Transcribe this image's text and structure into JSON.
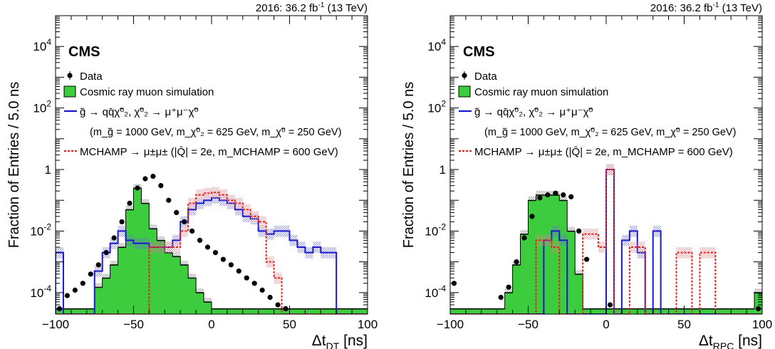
{
  "chart_data": [
    {
      "type": "histogram",
      "panel": "left",
      "lumi_label": "2016: 36.2 fb",
      "lumi_sup": "-1",
      "lumi_energy": " (13 TeV)",
      "experiment": "CMS",
      "ylabel": "Fraction of Entries / 5.0 ns",
      "xlabel_main": "Δt",
      "xlabel_sub": "DT",
      "xlabel_unit": " [ns]",
      "xlim": [
        -100,
        100
      ],
      "ylog": true,
      "ylim": [
        2e-05,
        100000
      ],
      "xticks": [
        -100,
        -50,
        0,
        50,
        100
      ],
      "yticks_labels": [
        {
          "v": 0.0001,
          "base": "10",
          "exp": "-4"
        },
        {
          "v": 0.01,
          "base": "10",
          "exp": "-2"
        },
        {
          "v": 1,
          "base": "1",
          "exp": ""
        },
        {
          "v": 100,
          "base": "10",
          "exp": "2"
        },
        {
          "v": 10000,
          "base": "10",
          "exp": "4"
        }
      ],
      "bin_edges_start": -100,
      "bin_width": 5,
      "series": [
        {
          "name": "Cosmic ray muon simulation",
          "kind": "filled",
          "color": "#3dcc3d",
          "values": [
            3e-05,
            3e-05,
            3e-05,
            3e-05,
            3e-05,
            0.00015,
            0.0003,
            0.0008,
            0.003,
            0.05,
            0.25,
            0.08,
            0.012,
            0.005,
            0.002,
            0.0015,
            0.0008,
            0.0003,
            0.0001,
            5e-05,
            3e-05,
            3e-05,
            3e-05,
            3e-05,
            3e-05,
            3e-05,
            3e-05,
            3e-05,
            3e-05,
            3e-05,
            3e-05,
            3e-05,
            3e-05,
            3e-05,
            3e-05,
            3e-05,
            3e-05,
            3e-05,
            3e-05,
            3e-05
          ]
        },
        {
          "name": "",
          "kind": "step",
          "color": "#1a1acc",
          "legend_ref": "signal_gluino",
          "values": [
            0.002,
            2e-05,
            2e-05,
            2e-05,
            2e-05,
            0.0005,
            0.002,
            0.004,
            0.01,
            0.005,
            0.004,
            0.004,
            0.003,
            0.003,
            0.003,
            0.005,
            0.02,
            0.05,
            0.08,
            0.1,
            0.12,
            0.1,
            0.08,
            0.05,
            0.03,
            0.025,
            0.01,
            0.008,
            0.01,
            0.01,
            0.005,
            0.003,
            0.002,
            0.003,
            0.002,
            0.002,
            2e-05,
            2e-05,
            2e-05,
            2e-05
          ]
        },
        {
          "name": "",
          "kind": "dashed",
          "color": "#e52020",
          "legend_ref": "signal_mchamp",
          "values": [
            2e-05,
            2e-05,
            2e-05,
            2e-05,
            2e-05,
            2e-05,
            2e-05,
            2e-05,
            2e-05,
            2e-05,
            2e-05,
            2e-05,
            0.003,
            0.003,
            0.003,
            0.003,
            0.01,
            0.08,
            0.15,
            0.17,
            0.18,
            0.15,
            0.1,
            0.08,
            0.05,
            0.03,
            0.02,
            0.001,
            0.0003,
            2e-05,
            2e-05,
            2e-05,
            2e-05,
            2e-05,
            2e-05,
            2e-05,
            2e-05,
            2e-05,
            2e-05,
            2e-05
          ]
        },
        {
          "name": "Data",
          "kind": "points",
          "color": "#000000",
          "x": [
            -97.5,
            -92.5,
            -87.5,
            -82.5,
            -77.5,
            -72.5,
            -67.5,
            -62.5,
            -57.5,
            -52.5,
            -47.5,
            -42.5,
            -37.5,
            -32.5,
            -27.5,
            -22.5,
            -17.5,
            -12.5,
            -7.5,
            -2.5,
            2.5,
            7.5,
            12.5,
            17.5,
            22.5,
            27.5,
            32.5,
            37.5,
            42.5,
            47.5
          ],
          "values": [
            3e-05,
            8e-05,
            0.00012,
            0.0002,
            0.0004,
            0.0008,
            0.002,
            0.006,
            0.02,
            0.08,
            0.25,
            0.5,
            0.6,
            0.3,
            0.1,
            0.04,
            0.02,
            0.01,
            0.005,
            0.003,
            0.002,
            0.0012,
            0.0008,
            0.0005,
            0.0003,
            0.0002,
            0.00012,
            7e-05,
            4e-05,
            3e-05
          ]
        }
      ]
    },
    {
      "type": "histogram",
      "panel": "right",
      "lumi_label": "2016: 36.2 fb",
      "lumi_sup": "-1",
      "lumi_energy": " (13 TeV)",
      "experiment": "CMS",
      "ylabel": "Fraction of Entries / 5.0 ns",
      "xlabel_main": "Δt",
      "xlabel_sub": "RPC",
      "xlabel_unit": " [ns]",
      "xlim": [
        -100,
        100
      ],
      "ylog": true,
      "ylim": [
        2e-05,
        100000
      ],
      "xticks": [
        -100,
        -50,
        0,
        50,
        100
      ],
      "yticks_labels": [
        {
          "v": 0.0001,
          "base": "10",
          "exp": "-4"
        },
        {
          "v": 0.01,
          "base": "10",
          "exp": "-2"
        },
        {
          "v": 1,
          "base": "1",
          "exp": ""
        },
        {
          "v": 100,
          "base": "10",
          "exp": "2"
        },
        {
          "v": 10000,
          "base": "10",
          "exp": "4"
        }
      ],
      "bin_edges_start": -100,
      "bin_width": 5,
      "series": [
        {
          "name": "Cosmic ray muon simulation",
          "kind": "filled",
          "color": "#3dcc3d",
          "values": [
            3e-05,
            3e-05,
            3e-05,
            3e-05,
            3e-05,
            3e-05,
            3e-05,
            0.0001,
            0.0008,
            0.008,
            0.1,
            0.15,
            0.15,
            0.15,
            0.1,
            0.01,
            0.0004,
            3e-05,
            3e-05,
            3e-05,
            3e-05,
            3e-05,
            3e-05,
            3e-05,
            3e-05,
            3e-05,
            3e-05,
            3e-05,
            3e-05,
            3e-05,
            3e-05,
            3e-05,
            3e-05,
            3e-05,
            3e-05,
            3e-05,
            3e-05,
            3e-05,
            3e-05,
            0.0001
          ]
        },
        {
          "name": "",
          "kind": "step",
          "color": "#1a1acc",
          "legend_ref": "signal_gluino",
          "values": [
            2e-05,
            2e-05,
            2e-05,
            2e-05,
            2e-05,
            2e-05,
            2e-05,
            2e-05,
            2e-05,
            2e-05,
            2e-05,
            2e-05,
            0.005,
            0.01,
            0.005,
            2e-05,
            2e-05,
            2e-05,
            2e-05,
            2e-05,
            1.0,
            2e-05,
            0.005,
            0.01,
            0.002,
            2e-05,
            0.01,
            2e-05,
            2e-05,
            2e-05,
            2e-05,
            2e-05,
            2e-05,
            2e-05,
            2e-05,
            2e-05,
            2e-05,
            2e-05,
            2e-05,
            2e-05
          ]
        },
        {
          "name": "",
          "kind": "dashed",
          "color": "#e52020",
          "legend_ref": "signal_mchamp",
          "values": [
            2e-05,
            2e-05,
            2e-05,
            2e-05,
            2e-05,
            2e-05,
            2e-05,
            2e-05,
            2e-05,
            2e-05,
            2e-05,
            0.005,
            0.005,
            0.003,
            2e-05,
            2e-05,
            2e-05,
            0.008,
            0.008,
            0.003,
            1.0,
            2e-05,
            2e-05,
            0.003,
            0.003,
            2e-05,
            2e-05,
            2e-05,
            2e-05,
            0.002,
            0.002,
            2e-05,
            0.002,
            0.002,
            2e-05,
            2e-05,
            2e-05,
            2e-05,
            2e-05,
            2e-05
          ]
        },
        {
          "name": "Data",
          "kind": "points",
          "color": "#000000",
          "x": [
            -97.5,
            -67.5,
            -62.5,
            -57.5,
            -52.5,
            -47.5,
            -42.5,
            -37.5,
            -32.5,
            -27.5,
            -22.5,
            -17.5,
            -12.5,
            2.5,
            97.5
          ],
          "values": [
            0.0002,
            7e-05,
            0.00015,
            0.001,
            0.006,
            0.03,
            0.12,
            0.15,
            0.17,
            0.15,
            0.13,
            0.01,
            0.0012,
            4e-05,
            3e-05
          ]
        }
      ]
    }
  ],
  "legend": {
    "data": "Data",
    "cosmic": "Cosmic ray muon simulation",
    "gluino_line1": "g̃ → qq̄χ̃⁰₂, χ̃⁰₂ → μ⁺μ⁻χ̃⁰",
    "gluino_line2": "(m_g̃ = 1000 GeV, m_χ̃⁰₂ = 625 GeV, m_χ̃⁰ = 250 GeV)",
    "mchamp": "MCHAMP → μ±μ± (|Q̄| = 2e, m_MCHAMP = 600 GeV)"
  }
}
